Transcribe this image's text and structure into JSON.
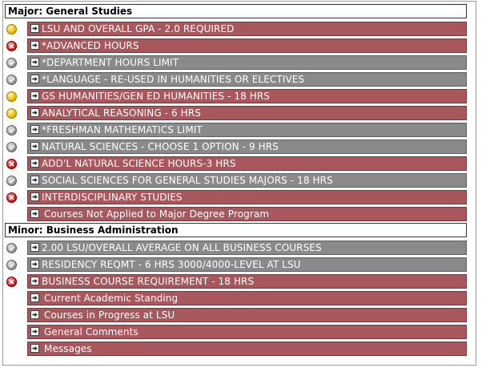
{
  "colors": {
    "bar_red": "#a8585c",
    "bar_gray": "#8a8a8a",
    "status_yellow": "#f0c419",
    "status_red": "#d92525",
    "status_gray": "#a5a5a5"
  },
  "sections": [
    {
      "title": "Major: General Studies",
      "items": [
        {
          "label": "LSU AND OVERALL GPA - 2.0 REQUIRED",
          "status": "yellow",
          "bar": "red"
        },
        {
          "label": "*ADVANCED HOURS",
          "status": "red",
          "bar": "red"
        },
        {
          "label": "*DEPARTMENT HOURS LIMIT",
          "status": "gray",
          "bar": "gray"
        },
        {
          "label": "*LANGUAGE - RE-USED IN HUMANITIES OR ELECTIVES",
          "status": "gray",
          "bar": "gray"
        },
        {
          "label": "GS HUMANITIES/GEN ED HUMANITIES - 18 HRS",
          "status": "yellow",
          "bar": "red"
        },
        {
          "label": "ANALYTICAL REASONING - 6 HRS",
          "status": "yellow",
          "bar": "red"
        },
        {
          "label": "*FRESHMAN MATHEMATICS LIMIT",
          "status": "gray",
          "bar": "gray"
        },
        {
          "label": "NATURAL SCIENCES - CHOOSE 1 OPTION - 9 HRS",
          "status": "gray",
          "bar": "gray"
        },
        {
          "label": "ADD'L NATURAL SCIENCE HOURS-3 HRS",
          "status": "red",
          "bar": "red"
        },
        {
          "label": "SOCIAL SCIENCES FOR GENERAL STUDIES MAJORS - 18 HRS",
          "status": "gray",
          "bar": "gray"
        },
        {
          "label": "INTERDISCIPLINARY STUDIES",
          "status": "red",
          "bar": "red"
        },
        {
          "label": "Courses Not Applied to Major Degree Program",
          "status": "none",
          "bar": "red"
        }
      ]
    },
    {
      "title": "Minor: Business Administration",
      "items": [
        {
          "label": "2.00 LSU/OVERALL AVERAGE ON ALL BUSINESS COURSES",
          "status": "gray",
          "bar": "gray"
        },
        {
          "label": "RESIDENCY REQMT - 6 HRS 3000/4000-LEVEL AT LSU",
          "status": "gray",
          "bar": "gray"
        },
        {
          "label": "BUSINESS COURSE REQUIREMENT - 18 HRS",
          "status": "red",
          "bar": "red"
        },
        {
          "label": "Current Academic Standing",
          "status": "none",
          "bar": "red"
        },
        {
          "label": "Courses in Progress at LSU",
          "status": "none",
          "bar": "red"
        },
        {
          "label": "General Comments",
          "status": "none",
          "bar": "red"
        },
        {
          "label": "Messages",
          "status": "none",
          "bar": "red"
        }
      ]
    }
  ]
}
